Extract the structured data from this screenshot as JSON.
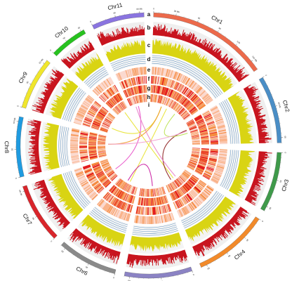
{
  "figure": {
    "track_letters": [
      "a",
      "b",
      "c",
      "d",
      "e",
      "f",
      "g",
      "h",
      "i"
    ]
  },
  "chromosomes": [
    {
      "name": "Chr1",
      "color": "#ec6a4b",
      "length_mb": 160,
      "tick_labels": [
        "0",
        "30 Mb",
        "60",
        "90",
        "120",
        "150 Mb"
      ]
    },
    {
      "name": "Chr2",
      "color": "#4a8ec6",
      "length_mb": 90,
      "tick_labels": [
        "0",
        "30 Mb",
        "60"
      ]
    },
    {
      "name": "Chr3",
      "color": "#3f9a4a",
      "length_mb": 80,
      "tick_labels": [
        "0",
        "30",
        "60"
      ]
    },
    {
      "name": "Chr4",
      "color": "#f28a2a",
      "length_mb": 100,
      "tick_labels": [
        "0",
        "30",
        "60",
        "90"
      ]
    },
    {
      "name": "Chr5",
      "color": "#8b83c4",
      "length_mb": 90,
      "tick_labels": [
        "0",
        "30",
        "60"
      ]
    },
    {
      "name": "Chr6",
      "color": "#8a8a8a",
      "length_mb": 80,
      "tick_labels": [
        "0",
        "30",
        "60"
      ]
    },
    {
      "name": "Chr7",
      "color": "#d9252b",
      "length_mb": 80,
      "tick_labels": [
        "0",
        "30",
        "60 Mb"
      ]
    },
    {
      "name": "Chr8",
      "color": "#1f9be0",
      "length_mb": 80,
      "tick_labels": [
        "0",
        "30",
        "60 Mb"
      ]
    },
    {
      "name": "Chr9",
      "color": "#f0e62c",
      "length_mb": 70,
      "tick_labels": [
        "0",
        "30",
        "60 Mb"
      ]
    },
    {
      "name": "Chr10",
      "color": "#27c21f",
      "length_mb": 50,
      "tick_labels": [
        "0",
        "30",
        "45"
      ]
    },
    {
      "name": "Chr11",
      "color": "#8a74e0",
      "length_mb": 70,
      "tick_labels": [
        "0",
        "30",
        "60 Mb"
      ]
    }
  ],
  "links": [
    {
      "from": "Chr1",
      "to": "Chr9",
      "color": "#e7e22c"
    },
    {
      "from": "Chr1",
      "to": "Chr6",
      "color": "#e7e22c"
    },
    {
      "from": "Chr10",
      "to": "Chr4",
      "color": "#e7e22c"
    },
    {
      "from": "Chr2",
      "to": "Chr4",
      "color": "#8b1d1d"
    },
    {
      "from": "Chr11",
      "to": "Chr7",
      "color": "#e84fc8"
    },
    {
      "from": "Chr6",
      "to": "Chr5",
      "color": "#c9179e"
    },
    {
      "from": "Chr1",
      "to": "Chr8",
      "color": "#f09a2a"
    },
    {
      "from": "Chr2",
      "to": "Chr1",
      "color": "#b8e04a"
    },
    {
      "from": "Chr8",
      "to": "Chr2",
      "color": "#f2a0d0"
    },
    {
      "from": "Chr11",
      "to": "Chr4",
      "color": "#e880c8"
    }
  ],
  "colors": {
    "histogram": "#c8141e",
    "density_fill": "#d9d413",
    "line_track": "#4f86b7",
    "heat_low": "#fbd9cf",
    "heat_mid": "#f58a3c",
    "heat_high": "#e31a1c",
    "track_bg": "#efefef"
  }
}
